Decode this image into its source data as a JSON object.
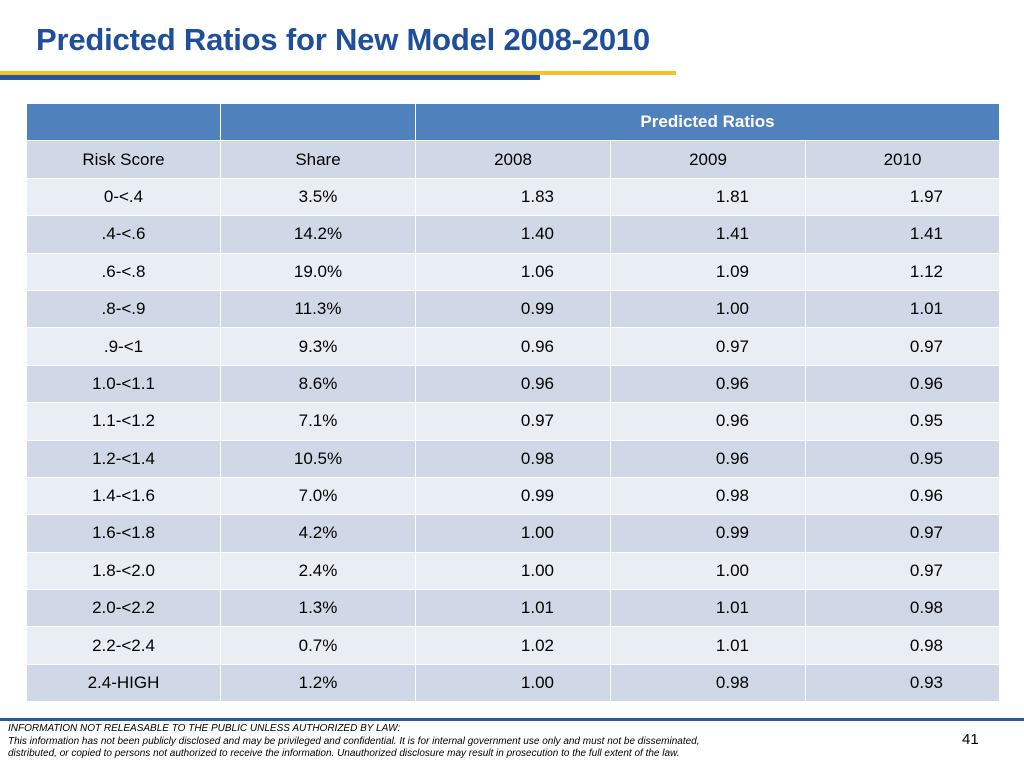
{
  "slide": {
    "title": "Predicted Ratios for New Model 2008-2010",
    "page_number": "41"
  },
  "table": {
    "group_header": "Predicted Ratios",
    "columns": [
      "Risk Score",
      "Share",
      "2008",
      "2009",
      "2010"
    ],
    "rows": [
      [
        "0-<.4",
        "3.5%",
        "1.83",
        "1.81",
        "1.97"
      ],
      [
        ".4-<.6",
        "14.2%",
        "1.40",
        "1.41",
        "1.41"
      ],
      [
        ".6-<.8",
        "19.0%",
        "1.06",
        "1.09",
        "1.12"
      ],
      [
        ".8-<.9",
        "11.3%",
        "0.99",
        "1.00",
        "1.01"
      ],
      [
        ".9-<1",
        "9.3%",
        "0.96",
        "0.97",
        "0.97"
      ],
      [
        "1.0-<1.1",
        "8.6%",
        "0.96",
        "0.96",
        "0.96"
      ],
      [
        "1.1-<1.2",
        "7.1%",
        "0.97",
        "0.96",
        "0.95"
      ],
      [
        "1.2-<1.4",
        "10.5%",
        "0.98",
        "0.96",
        "0.95"
      ],
      [
        "1.4-<1.6",
        "7.0%",
        "0.99",
        "0.98",
        "0.96"
      ],
      [
        "1.6-<1.8",
        "4.2%",
        "1.00",
        "0.99",
        "0.97"
      ],
      [
        "1.8-<2.0",
        "2.4%",
        "1.00",
        "1.00",
        "0.97"
      ],
      [
        "2.0-<2.2",
        "1.3%",
        "1.01",
        "1.01",
        "0.98"
      ],
      [
        "2.2-<2.4",
        "0.7%",
        "1.02",
        "1.01",
        "0.98"
      ],
      [
        "2.4-HIGH",
        "1.2%",
        "1.00",
        "0.98",
        "0.93"
      ]
    ]
  },
  "footer": {
    "disclaimer_lines": [
      "INFORMATION NOT RELEASABLE TO THE PUBLIC UNLESS AUTHORIZED BY LAW:",
      "This information has not been publicly disclosed and may be privileged and confidential.  It is for internal government use only and must not be disseminated,",
      "distributed, or copied to persons not authorized to receive the information.  Unauthorized disclosure may result in prosecution to the full extent of the law."
    ]
  },
  "colors": {
    "title": "#1f4e9b",
    "header_fill": "#4f81bd",
    "band_dark": "#d0d8e8",
    "band_light": "#e9edf4",
    "accent_gold": "#f2c22b",
    "accent_blue": "#2a55a3"
  }
}
